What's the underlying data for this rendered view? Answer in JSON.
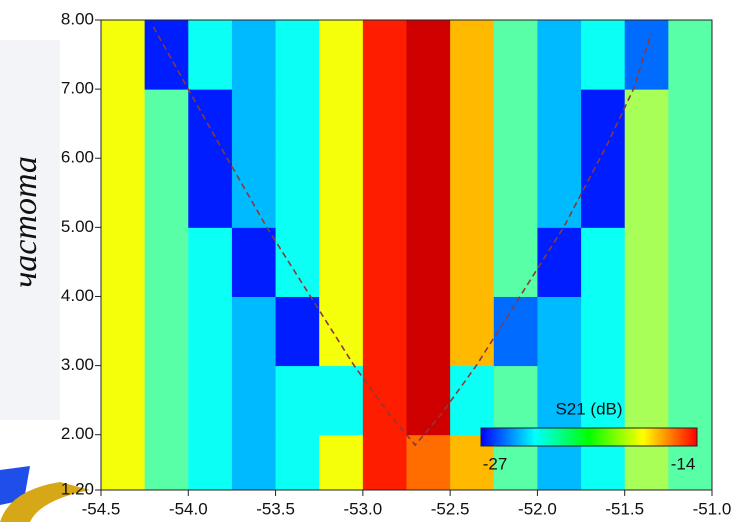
{
  "chart_data": {
    "type": "heatmap",
    "y_label": "частота",
    "x_bins": [
      -54.5,
      -54.25,
      -54.0,
      -53.75,
      -53.5,
      -53.25,
      -53.0,
      -52.75,
      -52.5,
      -52.25,
      -52.0,
      -51.75,
      -51.5,
      -51.25,
      -51.0
    ],
    "y_bins": [
      1.2,
      2,
      3,
      4,
      5,
      6,
      7,
      8
    ],
    "z": [
      [
        -19,
        -21,
        -22,
        -23,
        -22,
        -19,
        -16,
        -17,
        -18,
        -21,
        -23,
        -22,
        -20,
        -21
      ],
      [
        -19,
        -21,
        -22,
        -23,
        -22,
        -22,
        -16,
        -15,
        -22,
        -21,
        -23,
        -22,
        -20,
        -21
      ],
      [
        -19,
        -21,
        -22,
        -23,
        -25,
        -19,
        -16,
        -15,
        -18,
        -24,
        -23,
        -22,
        -20,
        -21
      ],
      [
        -19,
        -21,
        -22,
        -25,
        -22,
        -19,
        -16,
        -15,
        -18,
        -21,
        -25,
        -22,
        -20,
        -21
      ],
      [
        -19,
        -21,
        -25,
        -23,
        -22,
        -19,
        -16,
        -15,
        -18,
        -21,
        -23,
        -25,
        -20,
        -21
      ],
      [
        -19,
        -21,
        -25,
        -23,
        -22,
        -19,
        -16,
        -15,
        -18,
        -21,
        -23,
        -25,
        -20,
        -21
      ],
      [
        -19,
        -25,
        -22,
        -23,
        -22,
        -19,
        -16,
        -15,
        -18,
        -21,
        -23,
        -22,
        -24,
        -21
      ]
    ],
    "curve": {
      "color": "#8a3a3a",
      "x": [
        -54.2,
        -54.0,
        -53.8,
        -53.55,
        -53.3,
        -53.05,
        -52.85,
        -52.7,
        -52.55,
        -52.35,
        -52.1,
        -51.85,
        -51.6,
        -51.45,
        -51.35
      ],
      "y": [
        7.9,
        7.0,
        6.1,
        5.0,
        4.0,
        3.0,
        2.3,
        1.85,
        2.3,
        3.0,
        4.0,
        5.0,
        6.2,
        7.0,
        7.8
      ]
    },
    "xlim": [
      -54.5,
      -51.0
    ],
    "ylim": [
      1.2,
      8.0
    ],
    "xticks": [
      -54.5,
      {
        "value": -54.0,
        "label": "-54.0"
      },
      -53.5,
      {
        "value": -53.0,
        "label": "-53.0"
      },
      -52.5,
      {
        "value": -52.0,
        "label": "-52.0"
      },
      -51.5,
      {
        "value": -51.0,
        "label": "-51.0"
      }
    ],
    "yticks": [
      {
        "value": 1.2,
        "label": "1.20"
      },
      {
        "value": 2,
        "label": "2.00"
      },
      {
        "value": 3,
        "label": "3.00"
      },
      {
        "value": 4,
        "label": "4.00"
      },
      {
        "value": 5,
        "label": "5.00"
      },
      {
        "value": 6,
        "label": "6.00"
      },
      {
        "value": 7,
        "label": "7.00"
      },
      {
        "value": 8,
        "label": "8.00"
      }
    ],
    "colorbar": {
      "title": "S21 (dB)",
      "min": -27,
      "max": -14
    }
  }
}
